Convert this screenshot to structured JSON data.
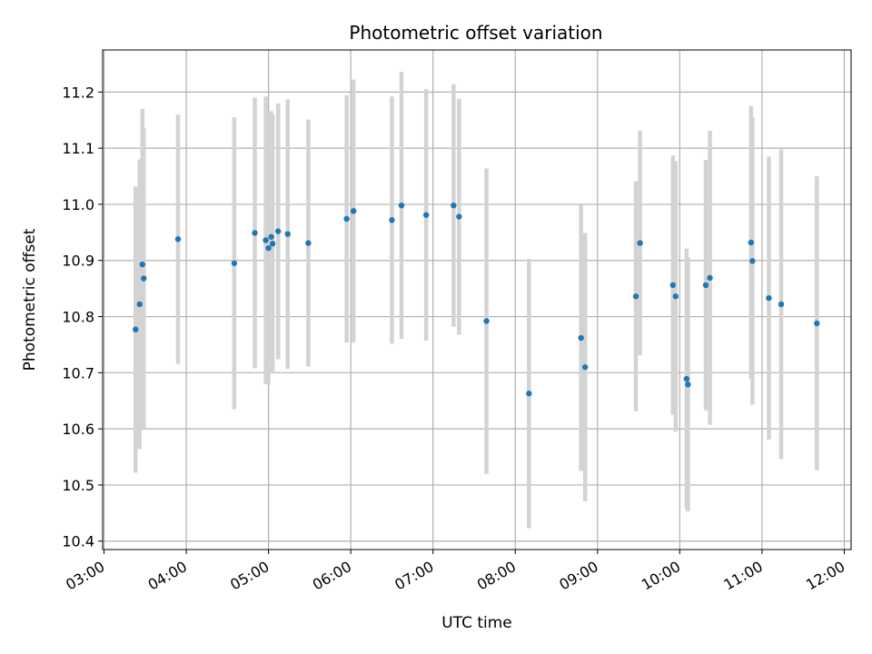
{
  "chart_data": {
    "type": "scatter",
    "title": "Photometric offset variation",
    "xlabel": "UTC time",
    "ylabel": "Photometric offset",
    "x_tick_labels": [
      "03:00",
      "04:00",
      "05:00",
      "06:00",
      "07:00",
      "08:00",
      "09:00",
      "10:00",
      "11:00",
      "12:00"
    ],
    "y_tick_labels": [
      "10.4",
      "10.5",
      "10.6",
      "10.7",
      "10.8",
      "10.9",
      "11.0",
      "11.1",
      "11.2"
    ],
    "xlim": [
      "02:59",
      "12:05"
    ],
    "ylim": [
      10.385,
      11.275
    ],
    "grid": true,
    "colors": {
      "marker": "#1f77b4",
      "errorbar": "#d3d3d3",
      "grid": "#b0b0b0"
    },
    "points": [
      {
        "x": "03:23",
        "y": 10.777,
        "err": 0.255
      },
      {
        "x": "03:26",
        "y": 10.822,
        "err": 0.258
      },
      {
        "x": "03:28",
        "y": 10.893,
        "err": 0.277
      },
      {
        "x": "03:29",
        "y": 10.868,
        "err": 0.268
      },
      {
        "x": "03:54",
        "y": 10.938,
        "err": 0.222
      },
      {
        "x": "04:35",
        "y": 10.895,
        "err": 0.26
      },
      {
        "x": "04:50",
        "y": 10.949,
        "err": 0.241
      },
      {
        "x": "04:58",
        "y": 10.936,
        "err": 0.256
      },
      {
        "x": "05:00",
        "y": 10.922,
        "err": 0.243
      },
      {
        "x": "05:02",
        "y": 10.942,
        "err": 0.224
      },
      {
        "x": "05:03",
        "y": 10.93,
        "err": 0.231
      },
      {
        "x": "05:07",
        "y": 10.952,
        "err": 0.228
      },
      {
        "x": "05:14",
        "y": 10.947,
        "err": 0.24
      },
      {
        "x": "05:29",
        "y": 10.931,
        "err": 0.22
      },
      {
        "x": "05:57",
        "y": 10.974,
        "err": 0.22
      },
      {
        "x": "06:02",
        "y": 10.988,
        "err": 0.234
      },
      {
        "x": "06:30",
        "y": 10.972,
        "err": 0.22
      },
      {
        "x": "06:37",
        "y": 10.998,
        "err": 0.238
      },
      {
        "x": "06:55",
        "y": 10.981,
        "err": 0.224
      },
      {
        "x": "07:15",
        "y": 10.998,
        "err": 0.216
      },
      {
        "x": "07:19",
        "y": 10.978,
        "err": 0.21
      },
      {
        "x": "07:39",
        "y": 10.792,
        "err": 0.272
      },
      {
        "x": "08:10",
        "y": 10.663,
        "err": 0.24
      },
      {
        "x": "08:48",
        "y": 10.762,
        "err": 0.237
      },
      {
        "x": "08:51",
        "y": 10.71,
        "err": 0.239
      },
      {
        "x": "09:28",
        "y": 10.836,
        "err": 0.205
      },
      {
        "x": "09:31",
        "y": 10.931,
        "err": 0.2
      },
      {
        "x": "09:55",
        "y": 10.856,
        "err": 0.231
      },
      {
        "x": "09:57",
        "y": 10.836,
        "err": 0.241
      },
      {
        "x": "10:05",
        "y": 10.689,
        "err": 0.232
      },
      {
        "x": "10:06",
        "y": 10.679,
        "err": 0.226
      },
      {
        "x": "10:19",
        "y": 10.856,
        "err": 0.223
      },
      {
        "x": "10:22",
        "y": 10.869,
        "err": 0.262
      },
      {
        "x": "10:52",
        "y": 10.932,
        "err": 0.243
      },
      {
        "x": "10:53",
        "y": 10.899,
        "err": 0.256
      },
      {
        "x": "11:05",
        "y": 10.833,
        "err": 0.252
      },
      {
        "x": "11:14",
        "y": 10.822,
        "err": 0.276
      },
      {
        "x": "11:40",
        "y": 10.788,
        "err": 0.262
      }
    ]
  }
}
